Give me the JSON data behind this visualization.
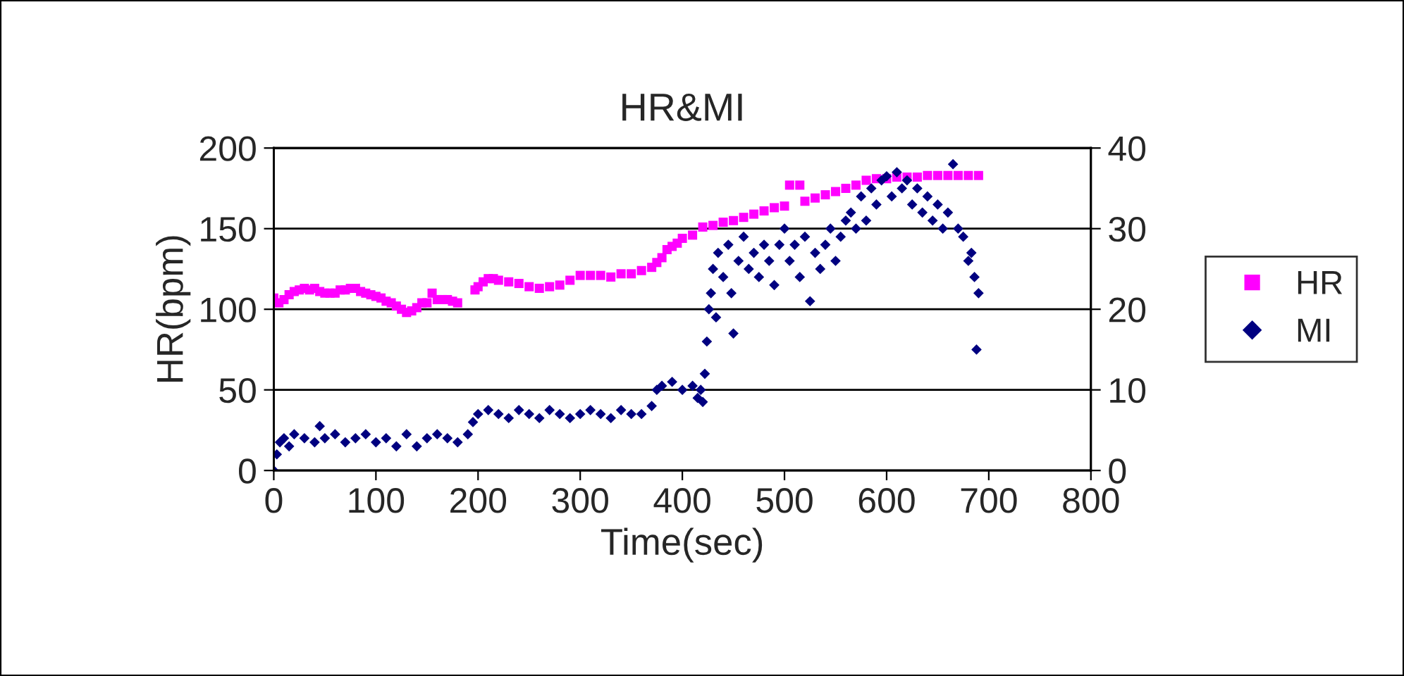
{
  "chart_data": {
    "type": "scatter",
    "title": "HR&MI",
    "xlabel": "Time(sec)",
    "ylabel": "HR(bpm)",
    "xlim": [
      0,
      800
    ],
    "xticks": [
      0,
      100,
      200,
      300,
      400,
      500,
      600,
      700,
      800
    ],
    "ylim": [
      0,
      200
    ],
    "yticks": [
      0,
      50,
      100,
      150,
      200
    ],
    "y2lim": [
      0,
      40
    ],
    "y2ticks": [
      0,
      10,
      20,
      30,
      40
    ],
    "grid": "y",
    "legend": "right",
    "series": [
      {
        "name": "HR",
        "color": "#ff00ff",
        "marker": "square",
        "x": [
          0,
          5,
          10,
          15,
          20,
          25,
          30,
          35,
          40,
          45,
          50,
          55,
          60,
          65,
          70,
          75,
          80,
          85,
          90,
          95,
          100,
          105,
          110,
          115,
          120,
          125,
          130,
          135,
          140,
          145,
          150,
          155,
          160,
          165,
          170,
          175,
          180,
          197,
          200,
          205,
          210,
          215,
          220,
          230,
          240,
          250,
          260,
          270,
          280,
          290,
          300,
          310,
          320,
          330,
          340,
          350,
          360,
          370,
          375,
          380,
          385,
          390,
          395,
          400,
          410,
          420,
          430,
          440,
          450,
          460,
          470,
          480,
          490,
          500,
          505,
          515,
          520,
          530,
          540,
          550,
          560,
          570,
          580,
          590,
          600,
          610,
          620,
          630,
          640,
          650,
          660,
          670,
          680,
          690
        ],
        "values": [
          107,
          104,
          106,
          109,
          111,
          112,
          113,
          112,
          113,
          111,
          110,
          110,
          110,
          112,
          112,
          113,
          113,
          111,
          110,
          109,
          108,
          107,
          105,
          104,
          102,
          100,
          98,
          99,
          101,
          104,
          104,
          110,
          106,
          106,
          106,
          105,
          104,
          112,
          114,
          117,
          119,
          119,
          118,
          117,
          116,
          114,
          113,
          114,
          115,
          118,
          121,
          121,
          121,
          120,
          122,
          122,
          124,
          126,
          129,
          132,
          137,
          139,
          141,
          144,
          146,
          151,
          152,
          154,
          155,
          157,
          159,
          161,
          163,
          164,
          177,
          177,
          167,
          169,
          171,
          173,
          175,
          177,
          180,
          181,
          181,
          182,
          182,
          182,
          183,
          183,
          183,
          183,
          183,
          183
        ]
      },
      {
        "name": "MI",
        "color": "#000080",
        "marker": "diamond",
        "axis": "y2",
        "x": [
          0,
          3,
          6,
          10,
          15,
          20,
          30,
          40,
          45,
          50,
          60,
          70,
          80,
          90,
          100,
          110,
          120,
          130,
          140,
          150,
          160,
          170,
          180,
          190,
          195,
          200,
          210,
          220,
          230,
          240,
          250,
          260,
          270,
          280,
          290,
          300,
          310,
          320,
          330,
          340,
          350,
          360,
          370,
          375,
          380,
          390,
          400,
          410,
          415,
          418,
          420,
          422,
          424,
          426,
          428,
          430,
          433,
          435,
          440,
          445,
          448,
          450,
          455,
          460,
          465,
          470,
          475,
          480,
          485,
          490,
          495,
          500,
          505,
          510,
          515,
          520,
          525,
          530,
          535,
          540,
          545,
          550,
          555,
          560,
          565,
          570,
          575,
          580,
          585,
          590,
          595,
          600,
          605,
          610,
          615,
          620,
          625,
          630,
          635,
          640,
          645,
          650,
          655,
          660,
          665,
          670,
          675,
          680,
          683,
          686,
          688,
          690
        ],
        "values": [
          0,
          2,
          3.5,
          4,
          3,
          4.5,
          4,
          3.5,
          5.5,
          4,
          4.5,
          3.5,
          4,
          4.5,
          3.5,
          4,
          3,
          4.5,
          3,
          4,
          4.5,
          4,
          3.5,
          4.5,
          6,
          7,
          7.5,
          7,
          6.5,
          7.5,
          7,
          6.5,
          7.5,
          7,
          6.5,
          7,
          7.5,
          7,
          6.5,
          7.5,
          7,
          7,
          8,
          10,
          10.5,
          11,
          10,
          10.5,
          9,
          10,
          8.5,
          12,
          16,
          20,
          22,
          25,
          19,
          27,
          24,
          28,
          22,
          17,
          26,
          29,
          25,
          27,
          24,
          28,
          26,
          23,
          28,
          30,
          26,
          28,
          24,
          29,
          21,
          27,
          25,
          28,
          30,
          26,
          29,
          31,
          32,
          30,
          34,
          31,
          35,
          33,
          36,
          36.5,
          34,
          37,
          35,
          36,
          33,
          35,
          32,
          34,
          31,
          33,
          30,
          32,
          38,
          30,
          29,
          26,
          27,
          24,
          15,
          22
        ]
      }
    ]
  }
}
